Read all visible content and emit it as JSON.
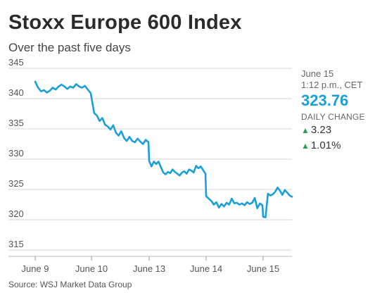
{
  "header": {
    "title": "Stoxx Europe 600 Index",
    "subtitle": "Over the past five days"
  },
  "panel": {
    "date": "June 15",
    "time": "1:12 p.m., CET",
    "value": "323.76",
    "change_label": "DAILY CHANGE",
    "change_points": "3.23",
    "change_percent": "1.01%",
    "up_color": "#2aa05a",
    "value_color": "#1a9fd6"
  },
  "source": "Source: WSJ Market Data Group",
  "chart_data": {
    "type": "line",
    "title": "Stoxx Europe 600 Index",
    "subtitle": "Over the past five days",
    "xlabel": "",
    "ylabel": "",
    "x_tick_labels": [
      "June 9",
      "June 10",
      "June 13",
      "June 14",
      "June 15"
    ],
    "y_ticks": [
      315,
      320,
      325,
      330,
      335,
      340,
      345
    ],
    "ylim": [
      315,
      345
    ],
    "grid": true,
    "line_color": "#1a9fd6",
    "series": [
      {
        "segments": [
          {
            "day": "June 9",
            "values": [
              342.8,
              341.8,
              341.2,
              341.4,
              341.0,
              341.3,
              341.8,
              341.5,
              342.0,
              342.3,
              342.0,
              341.6,
              342.0,
              341.8,
              342.4,
              342.0,
              341.8,
              342.1,
              341.5,
              340.9
            ]
          },
          {
            "day": "June 10",
            "values": [
              340.2,
              337.6,
              337.2,
              336.3,
              336.8,
              335.7,
              335.4,
              334.9,
              335.6,
              334.4,
              333.9,
              334.6,
              333.5,
              333.0,
              333.7,
              333.0,
              332.8,
              333.4,
              332.9,
              332.5,
              333.2,
              332.8
            ]
          },
          {
            "day": "June 13",
            "values": [
              329.7,
              328.8,
              329.6,
              329.2,
              329.6,
              328.7,
              327.8,
              327.5,
              327.9,
              327.7,
              328.3,
              327.9,
              327.6,
              327.3,
              327.8,
              328.0,
              327.6,
              328.3,
              328.1,
              327.8,
              328.9,
              328.5,
              328.8,
              328.2,
              327.6
            ]
          },
          {
            "day": "June 14",
            "values": [
              323.9,
              323.5,
              323.1,
              322.5,
              322.9,
              322.0,
              322.6,
              322.2,
              322.8,
              322.5,
              323.5,
              322.7,
              322.8,
              322.5,
              322.7,
              322.4,
              322.9,
              322.6,
              322.8,
              323.6,
              321.9,
              322.7,
              322.4
            ]
          },
          {
            "day": "June 15",
            "values": [
              320.5,
              320.4,
              324.3,
              324.0,
              324.2,
              324.6,
              325.3,
              324.8,
              324.1,
              324.9,
              324.5,
              324.0,
              323.8
            ]
          }
        ]
      }
    ]
  }
}
